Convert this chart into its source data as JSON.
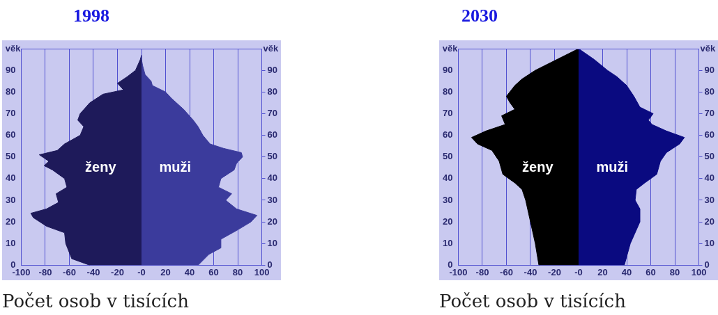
{
  "chart_data": [
    {
      "type": "area",
      "title": "1998",
      "xlabel": "Počet osob v tisících",
      "ylabel": "věk",
      "y2label": "věk",
      "orientation": "horizontal",
      "grid": "x",
      "xlim": [
        -100,
        100
      ],
      "xticks": [
        -100,
        -80,
        -60,
        -40,
        -20,
        {
          "value": 0,
          "label": "-0"
        },
        20,
        40,
        60,
        80,
        100
      ],
      "ylim": [
        0,
        100
      ],
      "yticks": [
        0,
        10,
        20,
        30,
        40,
        50,
        60,
        70,
        80,
        90
      ],
      "y2lim": [
        0,
        100
      ],
      "y2ticks": [
        0,
        10,
        20,
        30,
        40,
        50,
        60,
        70,
        80,
        90
      ],
      "series": [
        {
          "name": "ženy",
          "color": "#1e1a5a",
          "x": [
            0,
            3,
            10,
            15,
            18,
            22,
            24,
            26,
            29,
            33,
            36,
            40,
            44,
            46,
            48,
            51,
            53,
            56,
            60,
            64,
            67,
            70,
            75,
            79,
            81,
            84,
            87,
            90,
            95,
            97
          ],
          "values": [
            -43,
            -58,
            -63,
            -64,
            -79,
            -90,
            -92,
            -79,
            -69,
            -71,
            -62,
            -64,
            -74,
            -81,
            -77,
            -85,
            -70,
            -64,
            -51,
            -48,
            -53,
            -51,
            -43,
            -32,
            -15,
            -20,
            -12,
            -5,
            -1,
            0
          ]
        },
        {
          "name": "muži",
          "color": "#3b3b9c",
          "x": [
            0,
            5,
            8,
            12,
            16,
            20,
            23,
            26,
            30,
            33,
            36,
            40,
            44,
            47,
            50,
            52,
            54,
            56,
            60,
            64,
            67,
            72,
            77,
            80,
            83,
            85,
            88,
            92,
            95
          ],
          "values": [
            47,
            56,
            66,
            66,
            79,
            91,
            96,
            79,
            70,
            75,
            64,
            66,
            77,
            79,
            84,
            83,
            68,
            57,
            51,
            47,
            43,
            35,
            25,
            20,
            9,
            8,
            3,
            1,
            0
          ]
        }
      ]
    },
    {
      "type": "area",
      "title": "2030",
      "xlabel": "Počet osob v tisících",
      "ylabel": "věk",
      "y2label": "věk",
      "orientation": "horizontal",
      "grid": "x",
      "xlim": [
        -100,
        100
      ],
      "xticks": [
        -100,
        -80,
        -60,
        -40,
        -20,
        {
          "value": 0,
          "label": "-0"
        },
        20,
        40,
        60,
        80,
        100
      ],
      "ylim": [
        0,
        100
      ],
      "yticks": [
        0,
        10,
        20,
        30,
        40,
        50,
        60,
        70,
        80,
        90
      ],
      "y2lim": [
        0,
        100
      ],
      "y2ticks": [
        0,
        10,
        20,
        30,
        40,
        50,
        60,
        70,
        80,
        90
      ],
      "series": [
        {
          "name": "ženy",
          "color": "#000000",
          "x": [
            0,
            10,
            20,
            30,
            35,
            38,
            42,
            48,
            53,
            56,
            59,
            62,
            65,
            69,
            72,
            75,
            78,
            83,
            86,
            90,
            95,
            100
          ],
          "values": [
            -33,
            -36,
            -40,
            -44,
            -47,
            -53,
            -63,
            -66,
            -72,
            -84,
            -89,
            -77,
            -61,
            -64,
            -53,
            -57,
            -60,
            -53,
            -47,
            -36,
            -18,
            0
          ]
        },
        {
          "name": "muži",
          "color": "#0a0a80",
          "x": [
            0,
            10,
            20,
            26,
            30,
            35,
            38,
            42,
            48,
            52,
            56,
            59,
            62,
            65,
            67,
            70,
            73,
            78,
            83,
            87,
            90,
            95,
            100
          ],
          "values": [
            38,
            43,
            51,
            51,
            47,
            48,
            55,
            65,
            68,
            73,
            84,
            88,
            73,
            61,
            58,
            62,
            51,
            46,
            40,
            32,
            24,
            13,
            0
          ]
        }
      ]
    }
  ]
}
